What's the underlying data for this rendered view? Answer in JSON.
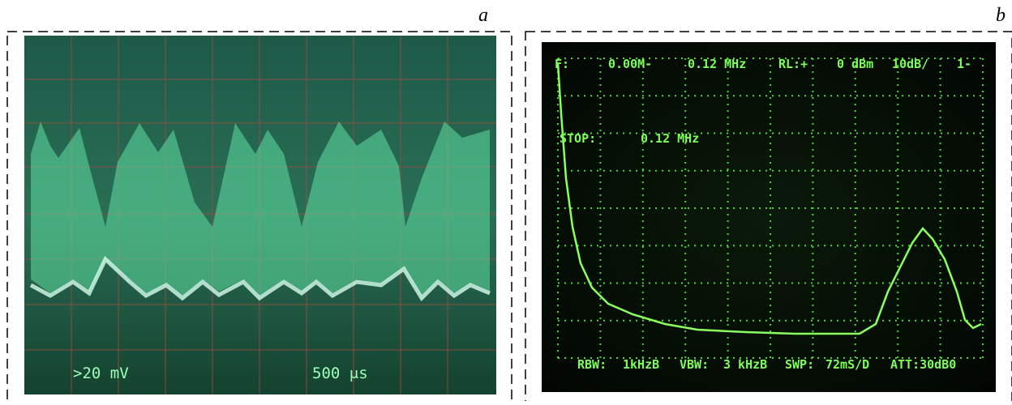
{
  "panels": [
    {
      "label": "a",
      "screen_texts": [
        ">20 mV",
        "500 μs"
      ]
    },
    {
      "label": "b",
      "screen_texts": [
        "F:",
        "0.00M-",
        "0.12 MHz",
        "RL:+",
        "0 dBm",
        "10dB/",
        "1-",
        "STOP:",
        "0.12 MHz",
        "RBW:",
        "1kHzB",
        "VBW:",
        "3 kHzB",
        "SWP:",
        "72mS/D",
        "ATT:30dB0"
      ]
    }
  ]
}
